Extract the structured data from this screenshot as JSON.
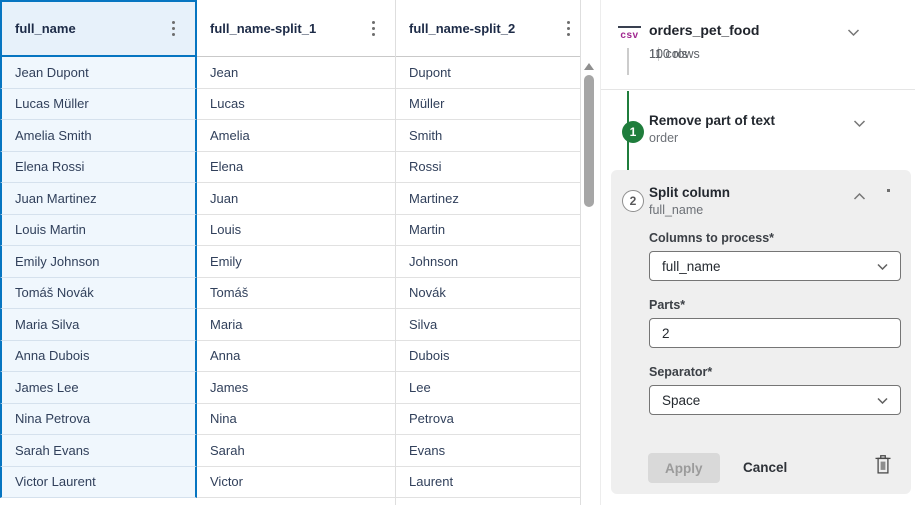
{
  "table": {
    "columns": [
      {
        "header": "full_name",
        "selected": true,
        "values": [
          "Jean Dupont",
          "Lucas Müller",
          "Amelia Smith",
          "Elena Rossi",
          "Juan Martinez",
          "Louis Martin",
          "Emily Johnson",
          "Tomáš Novák",
          "Maria Silva",
          "Anna Dubois",
          "James Lee",
          "Nina Petrova",
          "Sarah Evans",
          "Victor Laurent"
        ]
      },
      {
        "header": "full_name-split_1",
        "selected": false,
        "values": [
          "Jean",
          "Lucas",
          "Amelia",
          "Elena",
          "Juan",
          "Louis",
          "Emily",
          "Tomáš",
          "Maria",
          "Anna",
          "James",
          "Nina",
          "Sarah",
          "Victor"
        ]
      },
      {
        "header": "full_name-split_2",
        "selected": false,
        "values": [
          "Dupont",
          "Müller",
          "Smith",
          "Rossi",
          "Martinez",
          "Martin",
          "Johnson",
          "Novák",
          "Silva",
          "Dubois",
          "Lee",
          "Petrova",
          "Evans",
          "Laurent"
        ]
      }
    ]
  },
  "panel": {
    "dataset": {
      "format_badge": "csv",
      "name": "orders_pet_food",
      "cols": "11 cols",
      "rows": "100 rows"
    },
    "steps": [
      {
        "number": "1",
        "title": "Remove part of text",
        "subtitle": "order",
        "state": "collapsed"
      },
      {
        "number": "2",
        "title": "Split column",
        "subtitle": "full_name",
        "state": "expanded"
      }
    ],
    "form": {
      "fields": [
        {
          "label": "Columns to process*",
          "value": "full_name",
          "control": "select"
        },
        {
          "label": "Parts*",
          "value": "2",
          "control": "input"
        },
        {
          "label": "Separator*",
          "value": "Space",
          "control": "select"
        }
      ],
      "apply_label": "Apply",
      "cancel_label": "Cancel"
    }
  },
  "colors": {
    "accent_blue": "#0675c1",
    "step_green": "#1f7d3c",
    "csv_magenta": "#a0278f",
    "selected_header_bg": "#e7f1fa",
    "selected_column_bg": "#f0f7fd",
    "card_bg": "#efefef"
  }
}
